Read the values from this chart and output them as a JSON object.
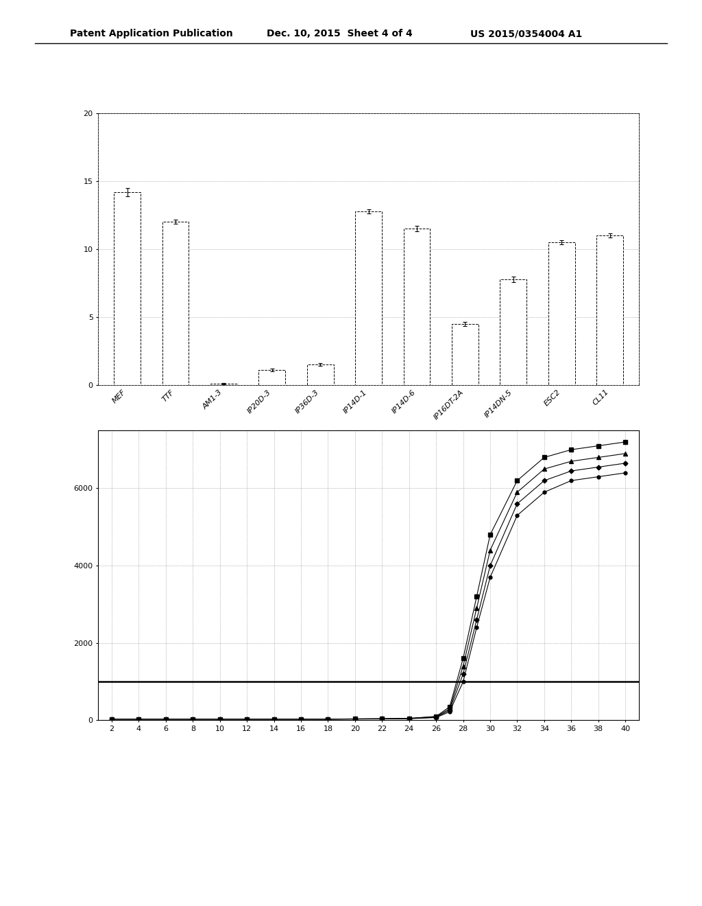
{
  "header_left": "Patent Application Publication",
  "header_mid": "Dec. 10, 2015  Sheet 4 of 4",
  "header_right": "US 2015/0354004 A1",
  "bar_categories": [
    "MEF",
    "TTF",
    "AM1-3",
    "IP20D-3",
    "IP36D-3",
    "IP14D-1",
    "IP14D-6",
    "IP16DT-2A",
    "IP14DN-5",
    "ESC2",
    "CL11"
  ],
  "bar_values": [
    14.2,
    12.0,
    0.1,
    1.1,
    1.5,
    12.8,
    11.5,
    4.5,
    7.8,
    10.5,
    11.0
  ],
  "bar_errors": [
    0.3,
    0.15,
    0.05,
    0.1,
    0.1,
    0.15,
    0.2,
    0.15,
    0.2,
    0.15,
    0.15
  ],
  "bar_ylim": [
    0,
    20
  ],
  "bar_yticks": [
    0,
    5,
    10,
    15,
    20
  ],
  "line_x": [
    2,
    4,
    6,
    8,
    10,
    12,
    14,
    16,
    18,
    20,
    22,
    24,
    26,
    27,
    28,
    29,
    30,
    32,
    34,
    36,
    38,
    40
  ],
  "line_series1": [
    30,
    30,
    30,
    30,
    30,
    30,
    30,
    30,
    30,
    35,
    40,
    50,
    100,
    350,
    1600,
    3200,
    4800,
    6200,
    6800,
    7000,
    7100,
    7200
  ],
  "line_series2": [
    30,
    30,
    30,
    30,
    30,
    30,
    30,
    30,
    30,
    35,
    38,
    48,
    90,
    300,
    1400,
    2900,
    4400,
    5900,
    6500,
    6700,
    6800,
    6900
  ],
  "line_series3": [
    30,
    30,
    30,
    30,
    30,
    30,
    30,
    30,
    30,
    33,
    36,
    44,
    80,
    260,
    1200,
    2600,
    4000,
    5600,
    6200,
    6450,
    6550,
    6650
  ],
  "line_series4": [
    30,
    30,
    30,
    30,
    30,
    30,
    30,
    30,
    30,
    32,
    34,
    42,
    70,
    220,
    1000,
    2400,
    3700,
    5300,
    5900,
    6200,
    6300,
    6400
  ],
  "line_hline": 1000,
  "line_ylim": [
    0,
    7500
  ],
  "line_yticks": [
    0,
    2000,
    4000,
    6000
  ],
  "line_xticks": [
    2,
    4,
    6,
    8,
    10,
    12,
    14,
    16,
    18,
    20,
    22,
    24,
    26,
    28,
    30,
    32,
    34,
    36,
    38,
    40
  ],
  "bg_color": "#f0f0f0",
  "bar_facecolor": "white",
  "bar_edgecolor": "black",
  "line_color": "black",
  "header_fontsize": 10,
  "axis_fontsize": 8
}
